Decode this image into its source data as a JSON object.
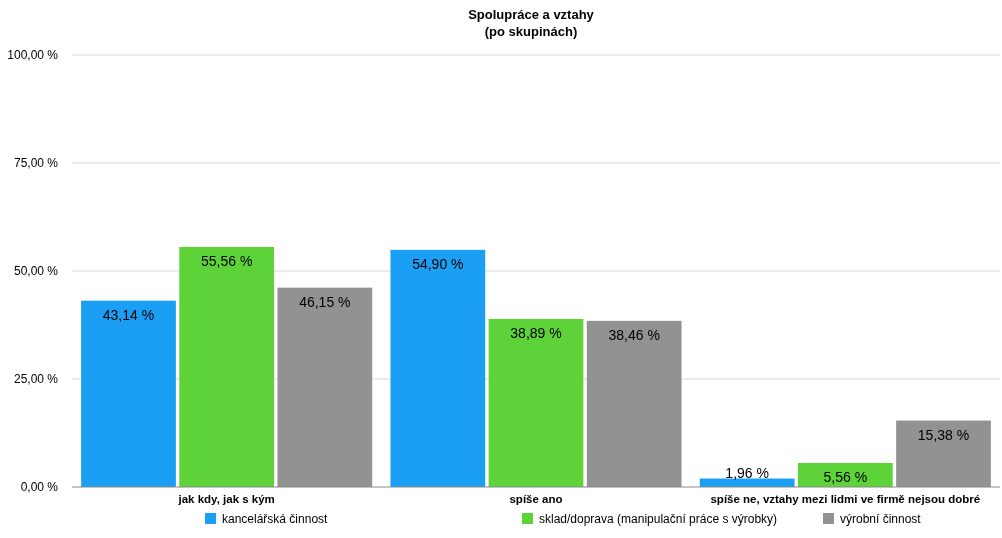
{
  "chart_data": {
    "type": "bar",
    "title": "Spolupráce a vztahy",
    "subtitle": "(po skupinách)",
    "categories": [
      "jak kdy, jak s kým",
      "spíše ano",
      "spíše ne, vztahy mezi lidmi ve firmě nejsou dobré"
    ],
    "series": [
      {
        "name": "kancelářská činnost",
        "color": "#1a9ff5",
        "values": [
          43.14,
          54.9,
          1.96
        ],
        "value_labels": [
          "43,14 %",
          "54,90 %",
          "1,96 %"
        ]
      },
      {
        "name": "sklad/doprava (manipulační práce s výrobky)",
        "color": "#5dd339",
        "values": [
          55.56,
          38.89,
          5.56
        ],
        "value_labels": [
          "55,56 %",
          "38,89 %",
          "5,56 %"
        ]
      },
      {
        "name": "výrobní činnost",
        "color": "#929292",
        "values": [
          46.15,
          38.46,
          15.38
        ],
        "value_labels": [
          "46,15 %",
          "38,46 %",
          "15,38 %"
        ]
      }
    ],
    "ylim": [
      0,
      100
    ],
    "yticks": [
      {
        "value": 0,
        "label": "0,00 %"
      },
      {
        "value": 25,
        "label": "25,00 %"
      },
      {
        "value": 50,
        "label": "50,00 %"
      },
      {
        "value": 75,
        "label": "75,00 %"
      },
      {
        "value": 100,
        "label": "100,00 %"
      }
    ],
    "grid": "y",
    "legend": "bottom"
  }
}
